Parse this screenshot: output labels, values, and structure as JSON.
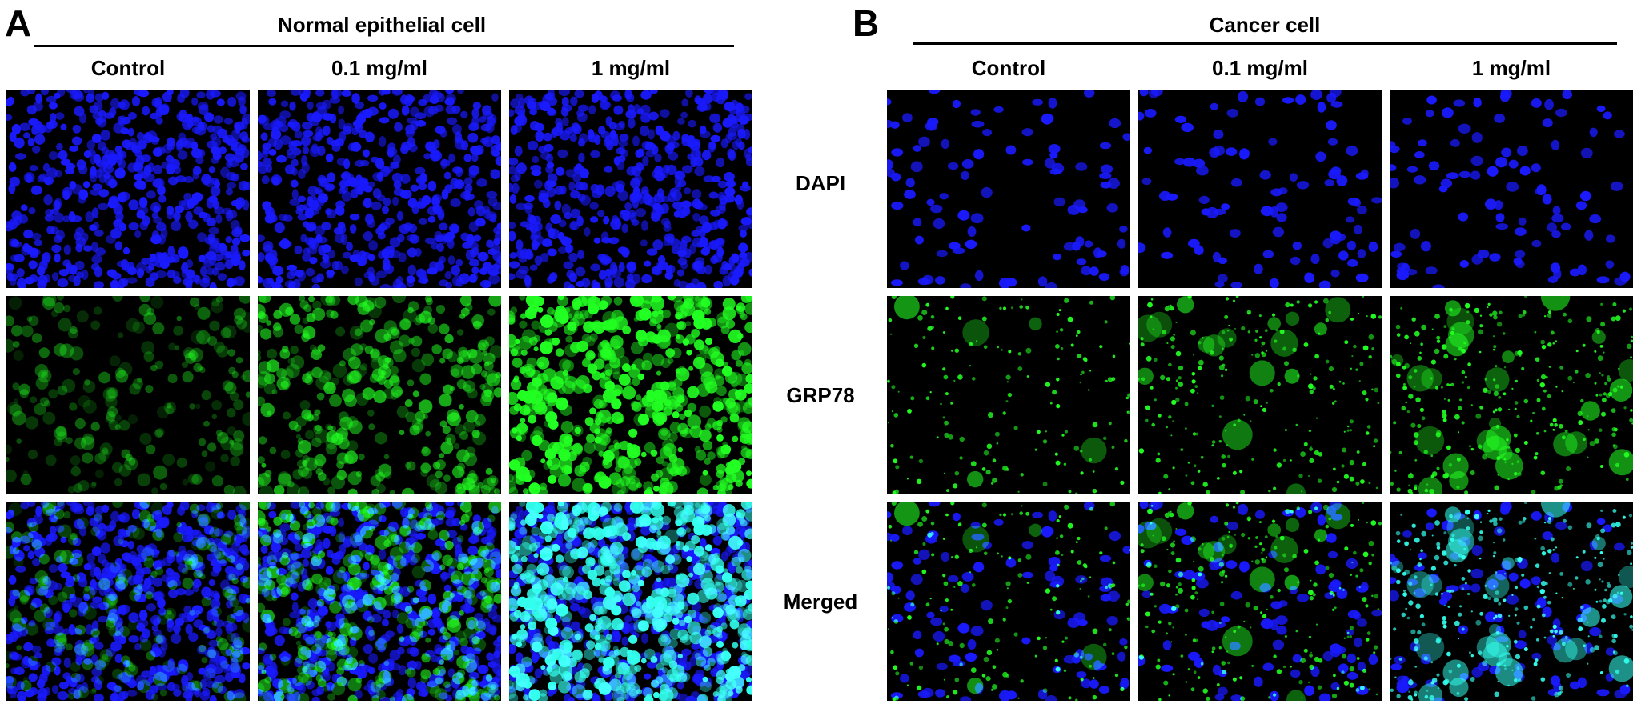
{
  "panels": [
    {
      "letter": "A",
      "title": "Normal epithelial cell",
      "cell_type": "normal",
      "columns": [
        "Control",
        "0.1 mg/ml",
        "1 mg/ml"
      ]
    },
    {
      "letter": "B",
      "title": "Cancer cell",
      "cell_type": "cancer",
      "columns": [
        "Control",
        "0.1 mg/ml",
        "1 mg/ml"
      ]
    }
  ],
  "rows": [
    "DAPI",
    "GRP78",
    "Merged"
  ],
  "colors": {
    "dapi": "#1a1aff",
    "grp78": "#22ff22",
    "merged_overlap": "#33ffee",
    "background": "#000000"
  },
  "grp78_intensity": {
    "normal": [
      0.15,
      0.5,
      1.0
    ],
    "cancer": [
      0.2,
      0.55,
      0.85
    ]
  }
}
